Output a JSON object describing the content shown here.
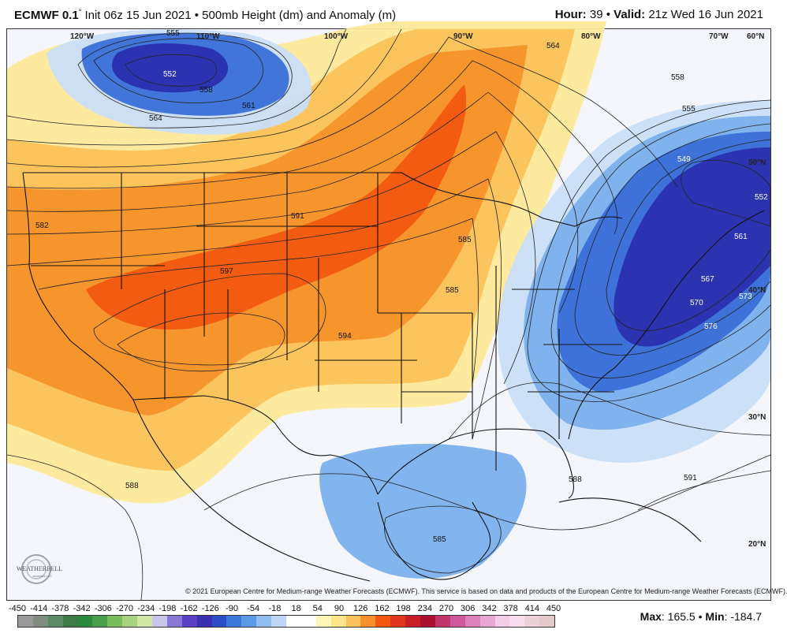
{
  "header": {
    "model": "ECMWF 0.1",
    "degree": "°",
    "init": " Init 06z 15 Jun 2021",
    "sep": " • ",
    "field": "500mb Height (dm) and Anomaly (m)",
    "hour_label": "Hour:",
    "hour_value": " 39 • ",
    "valid_label": "Valid:",
    "valid_value": " 21z Wed 16 Jun 2021"
  },
  "map": {
    "lon_labels": [
      "120°W",
      "110°W",
      "100°W",
      "90°W",
      "80°W",
      "70°W",
      "60°N"
    ],
    "lat_labels": [
      "50°N",
      "40°N",
      "30°N",
      "20°N"
    ],
    "contour_labels": [
      "555",
      "552",
      "558",
      "561",
      "564",
      "564",
      "558",
      "555",
      "549",
      "552",
      "561",
      "567",
      "570",
      "573",
      "576",
      "582",
      "591",
      "597",
      "594",
      "585",
      "585",
      "588",
      "585",
      "591",
      "588"
    ],
    "colors": {
      "ridge_core": "#f2580f",
      "ridge": "#f7922a",
      "ridge_outer": "#fbc25a",
      "ridge_edge": "#fde99a",
      "trough_core": "#2a2fae",
      "trough": "#3a6fd8",
      "trough_outer": "#7bb0ec",
      "trough_edge": "#c9def8",
      "neutral": "#f4f6fb"
    },
    "logo_text": "WEATHERBELL",
    "logo_sub": "Analytics LLC"
  },
  "credit": "© 2021 European Centre for Medium-range Weather Forecasts (ECMWF). This service is based on data and products of the European Centre for Medium-range Weather Forecasts (ECMWF).",
  "colorbar": {
    "ticks": [
      "-450",
      "-414",
      "-378",
      "-342",
      "-306",
      "-270",
      "-234",
      "-198",
      "-162",
      "-126",
      "-90",
      "-54",
      "-18",
      "18",
      "54",
      "90",
      "126",
      "162",
      "198",
      "234",
      "270",
      "306",
      "342",
      "378",
      "414",
      "450"
    ],
    "colors": [
      "#9a9a9a",
      "#7f8c7f",
      "#5d8a64",
      "#3c7a48",
      "#2a8a3c",
      "#4aa04a",
      "#79bd5f",
      "#a6d37f",
      "#cfe6a4",
      "#c9c6ee",
      "#8a78d6",
      "#5b3fc4",
      "#3a2fae",
      "#2f4cc8",
      "#3a78dc",
      "#5c9ae6",
      "#8fbdf0",
      "#bcd8f6",
      "#ffffff",
      "#ffffff",
      "#fff6b8",
      "#fde58a",
      "#fbc25a",
      "#f7922a",
      "#f2580f",
      "#e1351e",
      "#c81e28",
      "#a8102e",
      "#c0356a",
      "#d0579a",
      "#dd80bb",
      "#e9a8d3",
      "#f3cde6",
      "#f8dff0",
      "#ecd0d8",
      "#e3c8cc"
    ],
    "max_label": "Max",
    "max_value": ": 165.5 • ",
    "min_label": "Min",
    "min_value": ": -184.7"
  }
}
